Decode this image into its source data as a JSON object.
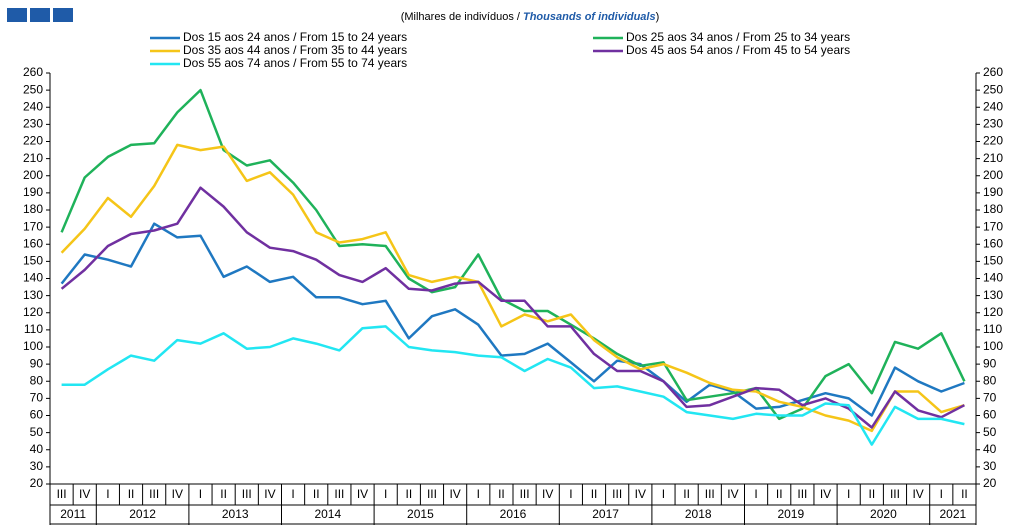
{
  "chart_data": {
    "type": "line",
    "subtitle": [
      "(Milhares de indivíduos / ",
      "Thousands of individuals",
      ")"
    ],
    "categories": [
      "III",
      "IV",
      "I",
      "II",
      "III",
      "IV",
      "I",
      "II",
      "III",
      "IV",
      "I",
      "II",
      "III",
      "IV",
      "I",
      "II",
      "III",
      "IV",
      "I",
      "II",
      "III",
      "IV",
      "I",
      "II",
      "III",
      "IV",
      "I",
      "II",
      "III",
      "IV",
      "I",
      "II",
      "III",
      "IV",
      "I",
      "II",
      "III",
      "IV",
      "I",
      "II"
    ],
    "years": [
      "2011",
      "2012",
      "2013",
      "2014",
      "2015",
      "2016",
      "2017",
      "2018",
      "2019",
      "2020",
      "2021"
    ],
    "series": [
      {
        "name": "Dos 15 aos 24 anos / From 15 to 24 years",
        "color": "#1f78c1",
        "values": [
          137,
          154,
          151,
          147,
          172,
          164,
          165,
          141,
          147,
          138,
          141,
          129,
          129,
          125,
          127,
          105,
          118,
          122,
          113,
          95,
          96,
          102,
          91,
          80,
          92,
          90,
          80,
          68,
          78,
          74,
          64,
          65,
          69,
          73,
          70,
          60,
          88,
          80,
          74,
          79
        ]
      },
      {
        "name": "Dos 25 aos 34 anos / From 25 to 34 years",
        "color": "#1fb25a",
        "values": [
          167,
          199,
          211,
          218,
          219,
          237,
          250,
          215,
          206,
          209,
          196,
          180,
          159,
          160,
          159,
          140,
          132,
          135,
          154,
          128,
          121,
          121,
          113,
          105,
          96,
          89,
          91,
          69,
          71,
          73,
          76,
          58,
          64,
          83,
          90,
          73,
          103,
          99,
          108,
          80
        ]
      },
      {
        "name": "Dos 35 aos 44 anos / From 35 to 44 years",
        "color": "#f5c518",
        "values": [
          155,
          169,
          187,
          176,
          194,
          218,
          215,
          217,
          197,
          202,
          189,
          167,
          161,
          163,
          167,
          142,
          138,
          141,
          138,
          112,
          119,
          115,
          119,
          104,
          94,
          87,
          90,
          85,
          79,
          75,
          74,
          68,
          65,
          60,
          57,
          51,
          74,
          74,
          62,
          66
        ]
      },
      {
        "name": "Dos 45 aos 54 anos / From 45 to 54 years",
        "color": "#7030a0",
        "values": [
          134,
          145,
          159,
          166,
          168,
          172,
          193,
          182,
          167,
          158,
          156,
          151,
          142,
          138,
          146,
          134,
          133,
          137,
          138,
          127,
          127,
          112,
          112,
          96,
          86,
          86,
          80,
          65,
          66,
          71,
          76,
          75,
          66,
          70,
          64,
          53,
          74,
          63,
          59,
          66
        ]
      },
      {
        "name": "Dos 55 aos 74 anos / From 55 to 74 years",
        "color": "#22e6f2",
        "values": [
          78,
          78,
          87,
          95,
          92,
          104,
          102,
          108,
          99,
          100,
          105,
          102,
          98,
          111,
          112,
          100,
          98,
          97,
          95,
          94,
          86,
          93,
          88,
          76,
          77,
          74,
          71,
          62,
          60,
          58,
          61,
          60,
          60,
          67,
          66,
          43,
          65,
          58,
          58,
          55
        ]
      }
    ],
    "ylim": [
      20,
      260
    ],
    "yticks": [
      20,
      30,
      40,
      50,
      60,
      70,
      80,
      90,
      100,
      110,
      120,
      130,
      140,
      150,
      160,
      170,
      180,
      190,
      200,
      210,
      220,
      230,
      240,
      250,
      260
    ]
  }
}
